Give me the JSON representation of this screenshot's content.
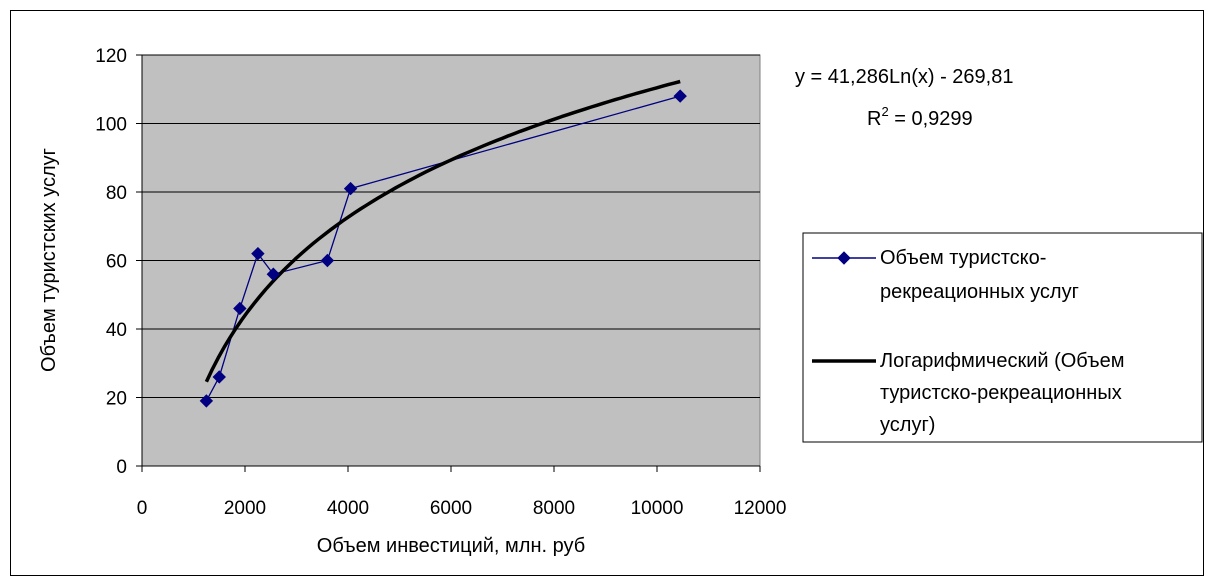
{
  "chart_data": {
    "type": "scatter",
    "xlabel": "Объем инвестиций, млн. руб",
    "ylabel": "Объем туристских услуг",
    "xlim": [
      0,
      12000
    ],
    "ylim": [
      0,
      120
    ],
    "x_ticks": [
      "0",
      "2000",
      "4000",
      "6000",
      "8000",
      "10000",
      "12000"
    ],
    "y_ticks": [
      "0",
      "20",
      "40",
      "60",
      "80",
      "100",
      "120"
    ],
    "grid": "horizontal",
    "plot_background": "#c0c0c0",
    "legend_position": "right",
    "series": [
      {
        "name": "Объем туристско-рекреационных услуг",
        "legend_lines": [
          "Объем  туристско-",
          "рекреационных услуг"
        ],
        "color": "#000080",
        "marker": "diamond",
        "x": [
          1250,
          1500,
          1900,
          2250,
          2550,
          3600,
          4050,
          10450
        ],
        "y": [
          19,
          26,
          46,
          62,
          56,
          60,
          81,
          108
        ]
      },
      {
        "name": "Логарифмический (Объем туристско-рекреационных услуг)",
        "legend_lines": [
          "Логарифмический (Объем",
          "туристско-рекреационных",
          "услуг)"
        ],
        "color": "#000000",
        "trend": "logarithmic",
        "coef_a": 41.286,
        "coef_b": -269.81,
        "x_range": [
          1250,
          10450
        ]
      }
    ],
    "equation_text": "y = 41,286Ln(x) - 269,81",
    "r2_label": "R",
    "r2_sup": "2",
    "r2_value": " = 0,9299"
  }
}
